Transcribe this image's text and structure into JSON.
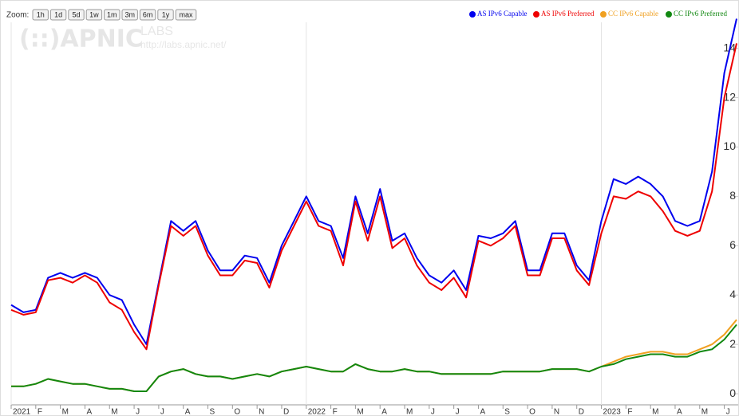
{
  "toolbar": {
    "label": "Zoom:",
    "buttons": [
      "1h",
      "1d",
      "5d",
      "1w",
      "1m",
      "3m",
      "6m",
      "1y",
      "max"
    ]
  },
  "watermark": {
    "logo": "(::)APNIC",
    "labs": "LABS",
    "url": "http://labs.apnic.net/"
  },
  "chart_data": {
    "type": "line",
    "categories": [
      "2021",
      null,
      "F",
      null,
      "M",
      null,
      "A",
      null,
      "M",
      null,
      "J",
      null,
      "J",
      null,
      "A",
      null,
      "S",
      null,
      "O",
      null,
      "N",
      null,
      "D",
      null,
      "2022",
      null,
      "F",
      null,
      "M",
      null,
      "A",
      null,
      "M",
      null,
      "J",
      null,
      "J",
      null,
      "A",
      null,
      "S",
      null,
      "O",
      null,
      "N",
      null,
      "D",
      null,
      "2023",
      null,
      "F",
      null,
      "M",
      null,
      "A",
      null,
      "M",
      null,
      "J",
      null
    ],
    "series": [
      {
        "name": "AS IPv6 Capable",
        "color": "#0000ee",
        "values": [
          3.6,
          3.3,
          3.4,
          4.7,
          4.9,
          4.7,
          4.9,
          4.7,
          4.0,
          3.8,
          2.8,
          2.0,
          4.5,
          7.0,
          6.6,
          7.0,
          5.8,
          5.0,
          5.0,
          5.6,
          5.5,
          4.5,
          6.0,
          7.0,
          8.0,
          7.0,
          6.8,
          5.5,
          8.0,
          6.5,
          8.3,
          6.2,
          6.5,
          5.5,
          4.8,
          4.5,
          5.0,
          4.2,
          6.4,
          6.3,
          6.5,
          7.0,
          5.0,
          5.0,
          6.5,
          6.5,
          5.2,
          4.6,
          7.0,
          8.7,
          8.5,
          8.8,
          8.5,
          8.0,
          7.0,
          6.8,
          7.0,
          9.0,
          13.0,
          15.2
        ]
      },
      {
        "name": "AS IPv6 Preferred",
        "color": "#ee0000",
        "values": [
          3.4,
          3.2,
          3.3,
          4.6,
          4.7,
          4.5,
          4.8,
          4.5,
          3.7,
          3.4,
          2.5,
          1.8,
          4.4,
          6.8,
          6.4,
          6.8,
          5.6,
          4.8,
          4.8,
          5.4,
          5.3,
          4.3,
          5.8,
          6.8,
          7.8,
          6.8,
          6.6,
          5.2,
          7.8,
          6.2,
          8.0,
          5.9,
          6.3,
          5.2,
          4.5,
          4.2,
          4.7,
          3.9,
          6.2,
          6.0,
          6.3,
          6.8,
          4.8,
          4.8,
          6.3,
          6.3,
          5.0,
          4.4,
          6.5,
          8.0,
          7.9,
          8.2,
          8.0,
          7.4,
          6.6,
          6.4,
          6.6,
          8.2,
          12.0,
          14.2
        ]
      },
      {
        "name": "CC IPv6 Capable",
        "color": "#f0a020",
        "values": [
          0.3,
          0.3,
          0.4,
          0.6,
          0.5,
          0.4,
          0.4,
          0.3,
          0.2,
          0.2,
          0.1,
          0.1,
          0.7,
          0.9,
          1.0,
          0.8,
          0.7,
          0.7,
          0.6,
          0.7,
          0.8,
          0.7,
          0.9,
          1.0,
          1.1,
          1.0,
          0.9,
          0.9,
          1.2,
          1.0,
          0.9,
          0.9,
          1.0,
          0.9,
          0.9,
          0.8,
          0.8,
          0.8,
          0.8,
          0.8,
          0.9,
          0.9,
          0.9,
          0.9,
          1.0,
          1.0,
          1.0,
          0.9,
          1.1,
          1.3,
          1.5,
          1.6,
          1.7,
          1.7,
          1.6,
          1.6,
          1.8,
          2.0,
          2.4,
          3.0
        ]
      },
      {
        "name": "CC IPv6 Preferred",
        "color": "#118811",
        "values": [
          0.3,
          0.3,
          0.4,
          0.6,
          0.5,
          0.4,
          0.4,
          0.3,
          0.2,
          0.2,
          0.1,
          0.1,
          0.7,
          0.9,
          1.0,
          0.8,
          0.7,
          0.7,
          0.6,
          0.7,
          0.8,
          0.7,
          0.9,
          1.0,
          1.1,
          1.0,
          0.9,
          0.9,
          1.2,
          1.0,
          0.9,
          0.9,
          1.0,
          0.9,
          0.9,
          0.8,
          0.8,
          0.8,
          0.8,
          0.8,
          0.9,
          0.9,
          0.9,
          0.9,
          1.0,
          1.0,
          1.0,
          0.9,
          1.1,
          1.2,
          1.4,
          1.5,
          1.6,
          1.6,
          1.5,
          1.5,
          1.7,
          1.8,
          2.2,
          2.8
        ]
      }
    ],
    "ylim": [
      -0.45,
      15.7
    ],
    "yticks": [
      0,
      2,
      4,
      6,
      8,
      10,
      12,
      14
    ]
  }
}
